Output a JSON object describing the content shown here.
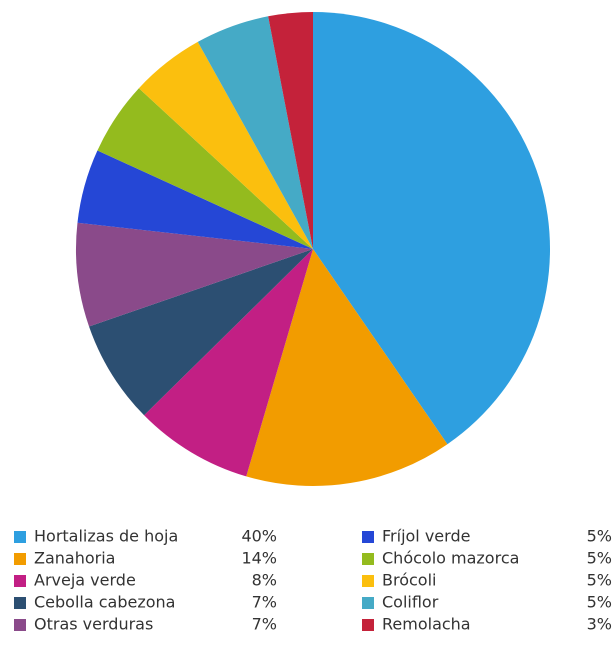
{
  "chart_data": {
    "type": "pie",
    "categories": [
      "Hortalizas de hoja",
      "Zanahoria",
      "Arveja verde",
      "Cebolla cabezona",
      "Otras verduras",
      "Fríjol verde",
      "Chócolo mazorca",
      "Brócoli",
      "Coliflor",
      "Remolacha"
    ],
    "values": [
      40,
      14,
      8,
      7,
      7,
      5,
      5,
      5,
      5,
      3
    ],
    "value_labels": [
      "40%",
      "14%",
      "8%",
      "7%",
      "7%",
      "5%",
      "5%",
      "5%",
      "5%",
      "3%"
    ],
    "colors": [
      "#2e9fe0",
      "#f29c00",
      "#c21f84",
      "#2c4f72",
      "#8a4a8a",
      "#2547d6",
      "#94bb1e",
      "#fbbf0e",
      "#45aac6",
      "#c4223a"
    ]
  }
}
